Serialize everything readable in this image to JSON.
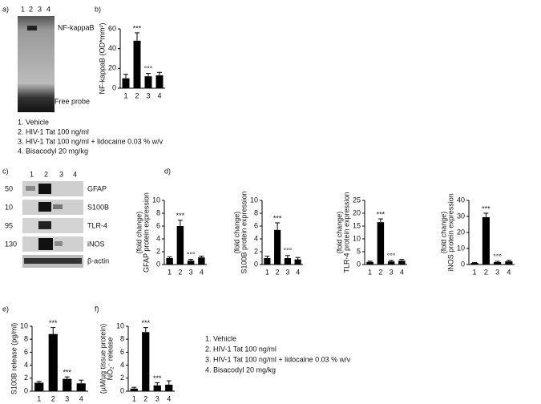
{
  "panels": [
    "a)",
    "b)",
    "c)",
    "d)",
    "e)",
    "f)"
  ],
  "gel": {
    "lanes": [
      "1",
      "2",
      "3",
      "4"
    ],
    "labels": [
      "NF-kappaB",
      "Free probe"
    ]
  },
  "legend_top": [
    "1. Vehicle",
    "2. HIV-1 Tat 100 ng/ml",
    "3. HIV-1 Tat 100 ng/ml + lidocaine  0.03 % w/v",
    "4. Bisacodyl 20 mg/kg"
  ],
  "blot": {
    "lanes": [
      "1",
      "2",
      "3",
      "4"
    ],
    "markers": [
      "50",
      "10",
      "95",
      "130"
    ],
    "proteins": [
      "GFAP",
      "S100B",
      "TLR-4",
      "iNOS",
      "β-actin"
    ]
  },
  "legend_bottom": [
    "1. Vehicle",
    "2. HIV-1 Tat 100 ng/ml",
    "3. HIV-1 Tat 100 ng/ml + lidocaine  0.03 % w/v",
    "4. Bisacodyl 20 mg/kg"
  ],
  "chart_data": [
    {
      "type": "bar",
      "ylabel": [
        "NF-kappaB (OD*mm²)"
      ],
      "categories": [
        "1",
        "2",
        "3",
        "4"
      ],
      "values": [
        10,
        48,
        12,
        13
      ],
      "errors": [
        4,
        8,
        3,
        3
      ],
      "annotations": [
        null,
        "***",
        "°°°",
        null
      ],
      "ylim": [
        0,
        60
      ],
      "yticks": [
        0,
        20,
        40,
        60
      ],
      "color": "#000000"
    },
    {
      "type": "bar",
      "ylabel": [
        "GFAP protein expression",
        "(fold change)"
      ],
      "categories": [
        "1",
        "2",
        "3",
        "4"
      ],
      "values": [
        1.0,
        6.0,
        0.6,
        1.1
      ],
      "errors": [
        0.2,
        0.9,
        0.2,
        0.2
      ],
      "annotations": [
        null,
        "***",
        "°°°",
        null
      ],
      "ylim": [
        0,
        10
      ],
      "yticks": [
        0,
        2,
        4,
        6,
        8,
        10
      ],
      "color": "#000000"
    },
    {
      "type": "bar",
      "ylabel": [
        "S100B protein expression",
        "(fold change)"
      ],
      "categories": [
        "1",
        "2",
        "3",
        "4"
      ],
      "values": [
        1.0,
        5.4,
        1.0,
        0.8
      ],
      "errors": [
        0.3,
        1.1,
        0.4,
        0.3
      ],
      "annotations": [
        null,
        "***",
        "°°°",
        null
      ],
      "ylim": [
        0,
        10
      ],
      "yticks": [
        0,
        2,
        4,
        6,
        8,
        10
      ],
      "color": "#000000"
    },
    {
      "type": "bar",
      "ylabel": [
        "TLR-4 protein expression",
        "(fold change)"
      ],
      "categories": [
        "1",
        "2",
        "3",
        "4"
      ],
      "values": [
        1.0,
        16.5,
        1.2,
        1.5
      ],
      "errors": [
        0.3,
        1.3,
        0.4,
        0.5
      ],
      "annotations": [
        null,
        "***",
        "°°°",
        null
      ],
      "ylim": [
        0,
        25
      ],
      "yticks": [
        0,
        5,
        10,
        15,
        20,
        25
      ],
      "color": "#000000"
    },
    {
      "type": "bar",
      "ylabel": [
        "iNOS protein expression",
        "(fold change)"
      ],
      "categories": [
        "1",
        "2",
        "3",
        "4"
      ],
      "values": [
        1.0,
        29.5,
        1.5,
        2.0
      ],
      "errors": [
        0.3,
        2.5,
        0.5,
        0.6
      ],
      "annotations": [
        null,
        "***",
        "°°°",
        null
      ],
      "ylim": [
        0,
        40
      ],
      "yticks": [
        0,
        10,
        20,
        30,
        40
      ],
      "color": "#000000"
    },
    {
      "type": "bar",
      "ylabel": [
        "S100B release (pg/ml)"
      ],
      "categories": [
        "1",
        "2",
        "3",
        "4"
      ],
      "values": [
        1.3,
        8.8,
        1.9,
        1.2
      ],
      "errors": [
        0.2,
        1.0,
        0.3,
        0.5
      ],
      "annotations": [
        null,
        "***",
        "***",
        null
      ],
      "ylim": [
        0,
        10
      ],
      "yticks": [
        0,
        2,
        4,
        6,
        8,
        10
      ],
      "color": "#000000"
    },
    {
      "type": "bar",
      "ylabel": [
        "NO₂⁻ release",
        "(µM/µg tissue protein)"
      ],
      "categories": [
        "1",
        "2",
        "3",
        "4"
      ],
      "values": [
        0.4,
        9.1,
        0.9,
        1.0
      ],
      "errors": [
        0.2,
        0.7,
        0.4,
        0.6
      ],
      "annotations": [
        null,
        "***",
        "***",
        null
      ],
      "ylim": [
        0,
        10
      ],
      "yticks": [
        0,
        2,
        4,
        6,
        8,
        10
      ],
      "color": "#000000"
    }
  ]
}
